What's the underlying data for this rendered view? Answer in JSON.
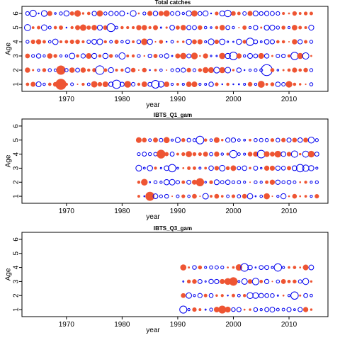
{
  "colors": {
    "positive": "#0000ee",
    "negative": "#ee5533",
    "frame": "#000000"
  },
  "chart_data": [
    {
      "type": "scatter",
      "title": "Total catches",
      "xlabel": "year",
      "ylabel": "Age",
      "xlim": [
        1962,
        2017
      ],
      "ylim": [
        0.5,
        6.5
      ],
      "xticks": [
        1970,
        1980,
        1990,
        2000,
        2010
      ],
      "yticks": [
        1,
        2,
        3,
        4,
        5,
        6
      ],
      "year_range": [
        1963,
        2014
      ],
      "ages": [
        1,
        2,
        3,
        4,
        5,
        6
      ],
      "seed": 11,
      "highlights": [
        {
          "year": 2006,
          "age": 2,
          "residual": 2.6
        },
        {
          "year": 1969,
          "age": 1,
          "residual": -2.4
        },
        {
          "year": 1969,
          "age": 2,
          "residual": -1.7
        },
        {
          "year": 1976,
          "age": 2,
          "residual": 1.6
        },
        {
          "year": 1979,
          "age": 1,
          "residual": 1.5
        },
        {
          "year": 1978,
          "age": 5,
          "residual": 1.4
        },
        {
          "year": 2000,
          "age": 3,
          "residual": 1.3
        },
        {
          "year": 2011,
          "age": 3,
          "residual": 1.2
        },
        {
          "year": 1986,
          "age": 1,
          "residual": 1.3
        },
        {
          "year": 2003,
          "age": 4,
          "residual": 1.2
        }
      ]
    },
    {
      "type": "scatter",
      "title": "IBTS_Q1_gam",
      "xlabel": "year",
      "ylabel": "Age",
      "xlim": [
        1962,
        2017
      ],
      "ylim": [
        0.5,
        6.5
      ],
      "xticks": [
        1970,
        1980,
        1990,
        2000,
        2010
      ],
      "yticks": [
        1,
        2,
        3,
        4,
        5,
        6
      ],
      "year_range": [
        1983,
        2015
      ],
      "ages": [
        1,
        2,
        3,
        4,
        5
      ],
      "seed": 23,
      "highlights": [
        {
          "year": 1985,
          "age": 1,
          "residual": -1.6
        },
        {
          "year": 1987,
          "age": 4,
          "residual": -1.5
        },
        {
          "year": 1994,
          "age": 5,
          "residual": 1.3
        },
        {
          "year": 2005,
          "age": 4,
          "residual": 1.3
        },
        {
          "year": 2000,
          "age": 4,
          "residual": 1.2
        },
        {
          "year": 2012,
          "age": 3,
          "residual": 1.2
        },
        {
          "year": 1989,
          "age": 3,
          "residual": 1.2
        },
        {
          "year": 1994,
          "age": 2,
          "residual": -1.3
        }
      ]
    },
    {
      "type": "scatter",
      "title": "IBTS_Q3_gam",
      "xlabel": "year",
      "ylabel": "Age",
      "xlim": [
        1962,
        2017
      ],
      "ylim": [
        0.5,
        6.5
      ],
      "xticks": [
        1970,
        1980,
        1990,
        2000,
        2010
      ],
      "yticks": [
        1,
        2,
        3,
        4,
        5,
        6
      ],
      "year_range": [
        1991,
        2014
      ],
      "ages": [
        1,
        2,
        3,
        4
      ],
      "seed": 37,
      "highlights": [
        {
          "year": 2002,
          "age": 4,
          "residual": 1.3
        },
        {
          "year": 2000,
          "age": 3,
          "residual": -1.4
        },
        {
          "year": 2008,
          "age": 4,
          "residual": 1.2
        },
        {
          "year": 1998,
          "age": 1,
          "residual": -1.2
        },
        {
          "year": 2011,
          "age": 2,
          "residual": 1.2
        },
        {
          "year": 1991,
          "age": 1,
          "residual": 1.1
        }
      ]
    }
  ]
}
